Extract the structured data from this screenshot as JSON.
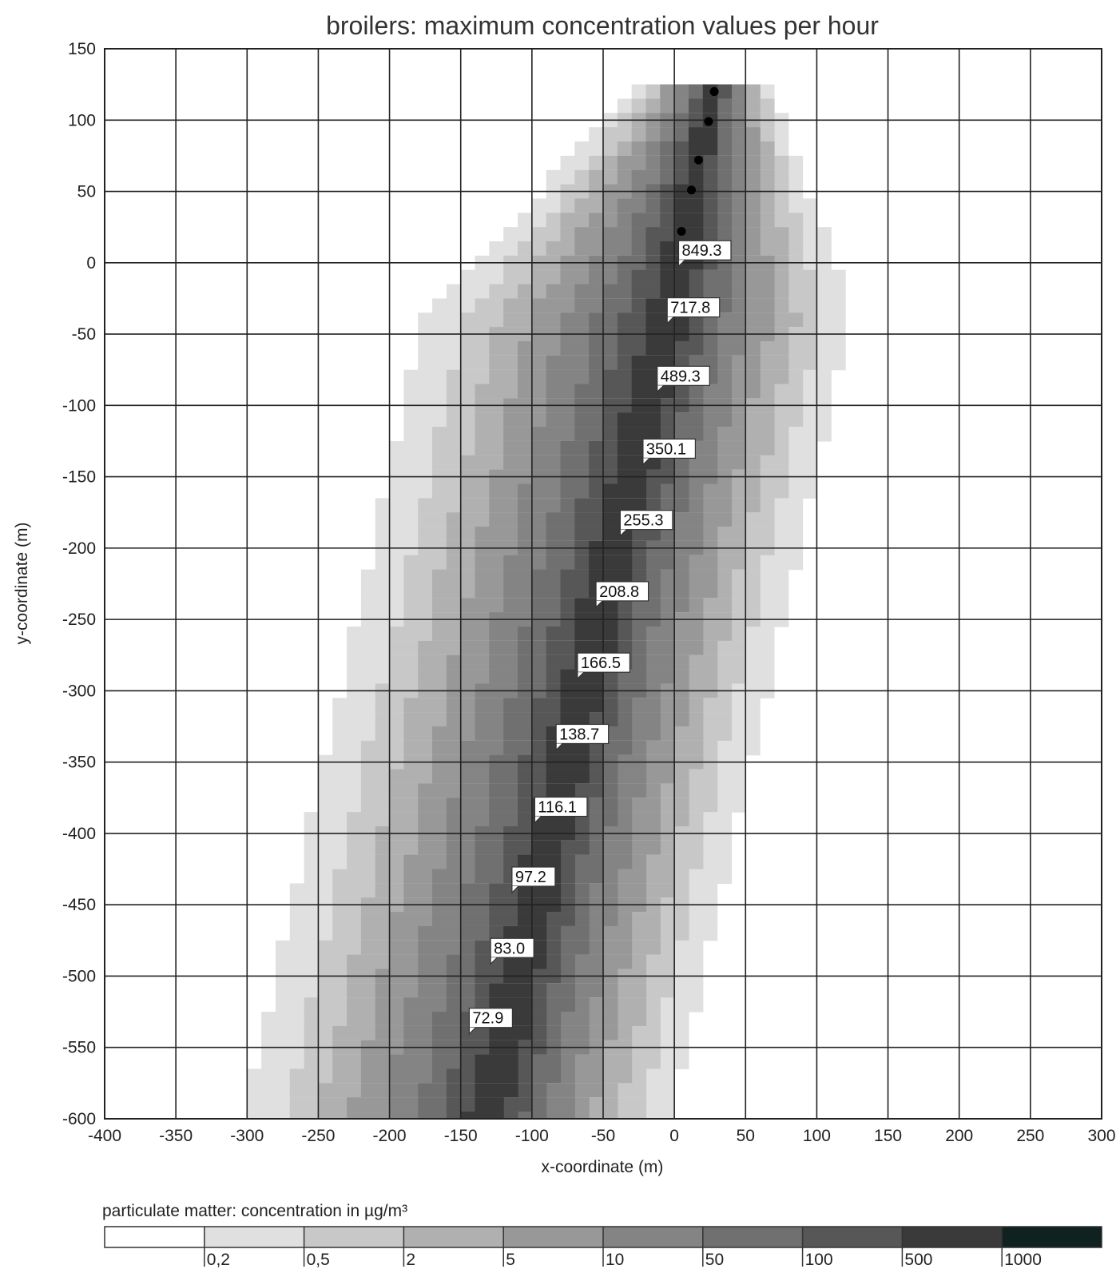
{
  "chart_data": {
    "type": "heatmap",
    "title": "broilers: maximum concentration values per hour",
    "xlabel": "x-coordinate (m)",
    "ylabel": "y-coordinate (m)",
    "xlim": [
      -400,
      300
    ],
    "ylim": [
      -600,
      150
    ],
    "x_ticks": [
      "-400",
      "-350",
      "-300",
      "-250",
      "-200",
      "-150",
      "-100",
      "-50",
      "0",
      "50",
      "100",
      "150",
      "200",
      "250",
      "300"
    ],
    "y_ticks": [
      "150",
      "100",
      "50",
      "0",
      "-50",
      "-100",
      "-150",
      "-200",
      "-250",
      "-300",
      "-350",
      "-400",
      "-450",
      "-500",
      "-550",
      "-600"
    ],
    "grid": true,
    "sources": [
      {
        "x": 28,
        "y": 120
      },
      {
        "x": 24,
        "y": 99
      },
      {
        "x": 17,
        "y": 72
      },
      {
        "x": 12,
        "y": 51
      },
      {
        "x": 5,
        "y": 22
      }
    ],
    "plume_centerline": [
      {
        "x": 28,
        "y": 125
      },
      {
        "x": 5,
        "y": 0
      },
      {
        "x": -130,
        "y": -600
      }
    ],
    "concentration_labels": [
      {
        "x": 3,
        "y": 2,
        "value": "849.3"
      },
      {
        "x": -5,
        "y": -38,
        "value": "717.8"
      },
      {
        "x": -12,
        "y": -86,
        "value": "489.3"
      },
      {
        "x": -22,
        "y": -137,
        "value": "350.1"
      },
      {
        "x": -38,
        "y": -187,
        "value": "255.3"
      },
      {
        "x": -55,
        "y": -237,
        "value": "208.8"
      },
      {
        "x": -68,
        "y": -287,
        "value": "166.5"
      },
      {
        "x": -83,
        "y": -337,
        "value": "138.7"
      },
      {
        "x": -98,
        "y": -388,
        "value": "116.1"
      },
      {
        "x": -114,
        "y": -437,
        "value": "97.2"
      },
      {
        "x": -129,
        "y": -487,
        "value": "83.0"
      },
      {
        "x": -144,
        "y": -536,
        "value": "72.9"
      }
    ],
    "legend": {
      "title": "particulate matter: concentration in µg/m³",
      "thresholds": [
        "0,2",
        "0,5",
        "2",
        "5",
        "10",
        "50",
        "100",
        "500",
        "1000"
      ],
      "colors": [
        "#ffffff",
        "#e0e0e0",
        "#c8c8c8",
        "#b0b0b0",
        "#989898",
        "#848484",
        "#707070",
        "#575757",
        "#3a3a3a",
        "#0f2220"
      ]
    }
  }
}
